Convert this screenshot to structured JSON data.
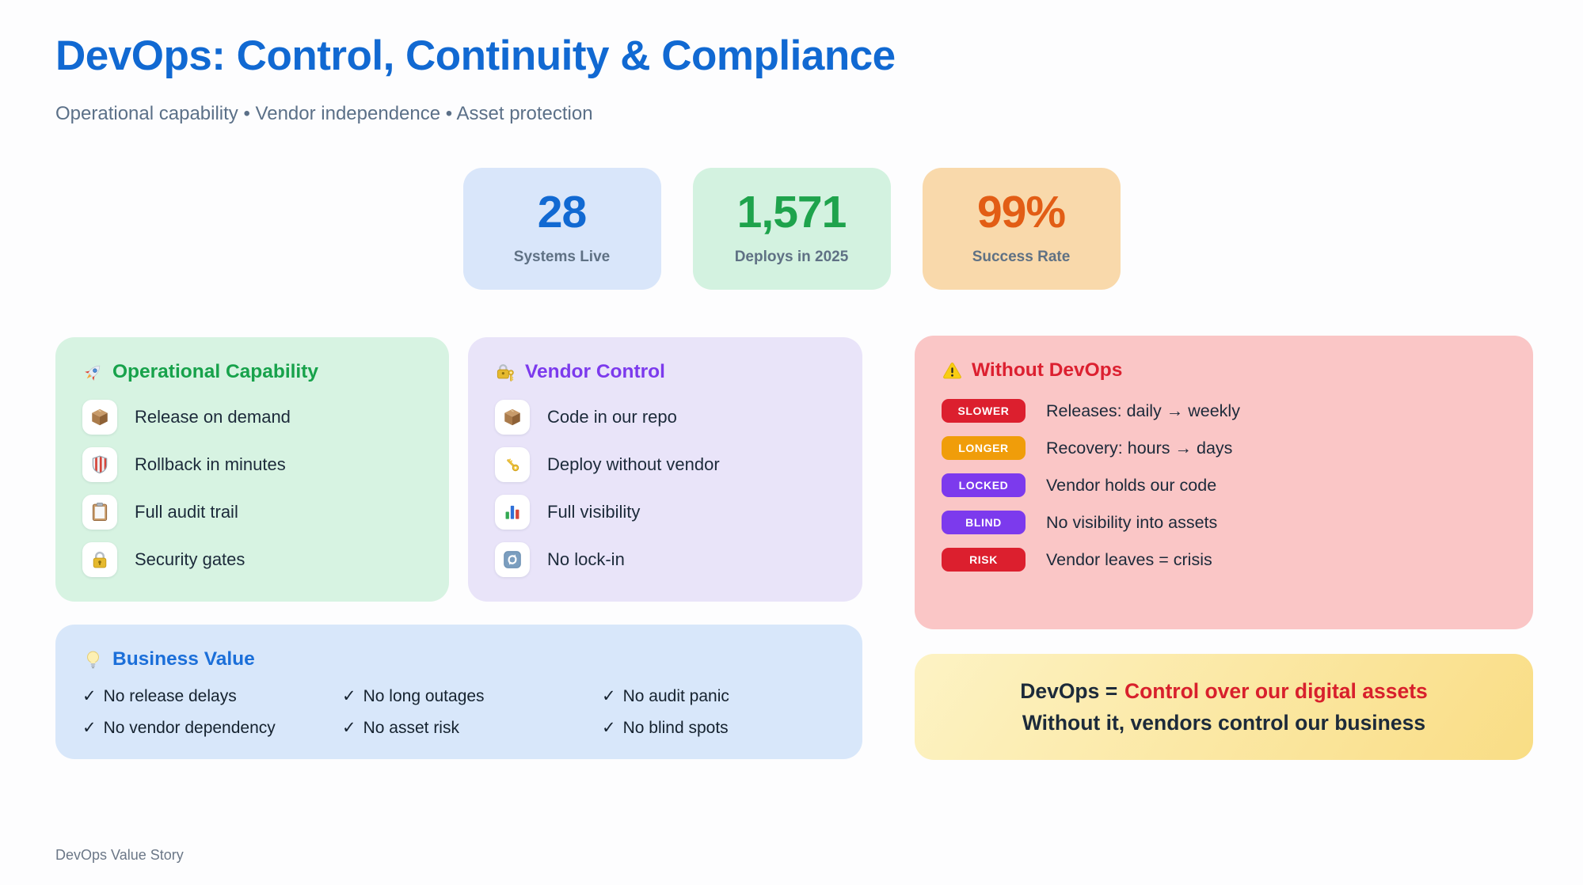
{
  "page": {
    "title": "DevOps: Control, Continuity & Compliance",
    "title_color": "#1169d2",
    "subtitle": "Operational capability • Vendor independence • Asset protection",
    "footer": "DevOps Value Story",
    "background": "#fdfdfe"
  },
  "stats": [
    {
      "value": "28",
      "label": "Systems Live",
      "color": "#1169d2",
      "bg": "#d9e6fa"
    },
    {
      "value": "1,571",
      "label": "Deploys in 2025",
      "color": "#1ea34c",
      "bg": "#d3f2e0"
    },
    {
      "value": "99%",
      "label": "Success Rate",
      "color": "#e25d15",
      "bg": "#f9d9ab"
    }
  ],
  "panels": {
    "operational": {
      "title": "Operational Capability",
      "title_color": "#17a24b",
      "bg": "#d7f3e2",
      "icon": "rocket",
      "items": [
        {
          "icon": "package",
          "label": "Release on demand"
        },
        {
          "icon": "shield",
          "label": "Rollback in minutes"
        },
        {
          "icon": "clipboard",
          "label": "Full audit trail"
        },
        {
          "icon": "lock",
          "label": "Security gates"
        }
      ]
    },
    "vendor": {
      "title": "Vendor Control",
      "title_color": "#7c3aed",
      "bg": "#e9e4f9",
      "icon": "locked-with-key",
      "items": [
        {
          "icon": "package",
          "label": "Code in our repo"
        },
        {
          "icon": "key",
          "label": "Deploy without vendor"
        },
        {
          "icon": "bar-chart",
          "label": "Full visibility"
        },
        {
          "icon": "refresh",
          "label": "No lock-in"
        }
      ]
    },
    "without": {
      "title": "Without DevOps",
      "title_color": "#dc2030",
      "bg": "#fac6c6",
      "icon": "warning",
      "rows": [
        {
          "badge": "SLOWER",
          "badge_color": "#dc1f2e",
          "text": "Releases: daily → weekly"
        },
        {
          "badge": "LONGER",
          "badge_color": "#f09d0a",
          "text": "Recovery: hours → days"
        },
        {
          "badge": "LOCKED",
          "badge_color": "#7c3aed",
          "text": "Vendor holds our code"
        },
        {
          "badge": "BLIND",
          "badge_color": "#7c3aed",
          "text": "No visibility into assets"
        },
        {
          "badge": "RISK",
          "badge_color": "#dc1f2e",
          "text": "Vendor leaves = crisis"
        }
      ]
    },
    "business": {
      "title": "Business Value",
      "title_color": "#1b6fd9",
      "bg": "#d8e7fa",
      "icon": "bulb",
      "check_mark": "✓",
      "checks": [
        "No release delays",
        "No long outages",
        "No audit panic",
        "No vendor dependency",
        "No asset risk",
        "No blind spots"
      ]
    },
    "conclusion": {
      "line1_prefix": "DevOps =",
      "line1_highlight": "Control over our digital assets",
      "highlight_color": "#d8202c",
      "line2": "Without it, vendors control our business",
      "bg_from": "#fdf3c4",
      "bg_to": "#f9dd85"
    }
  }
}
